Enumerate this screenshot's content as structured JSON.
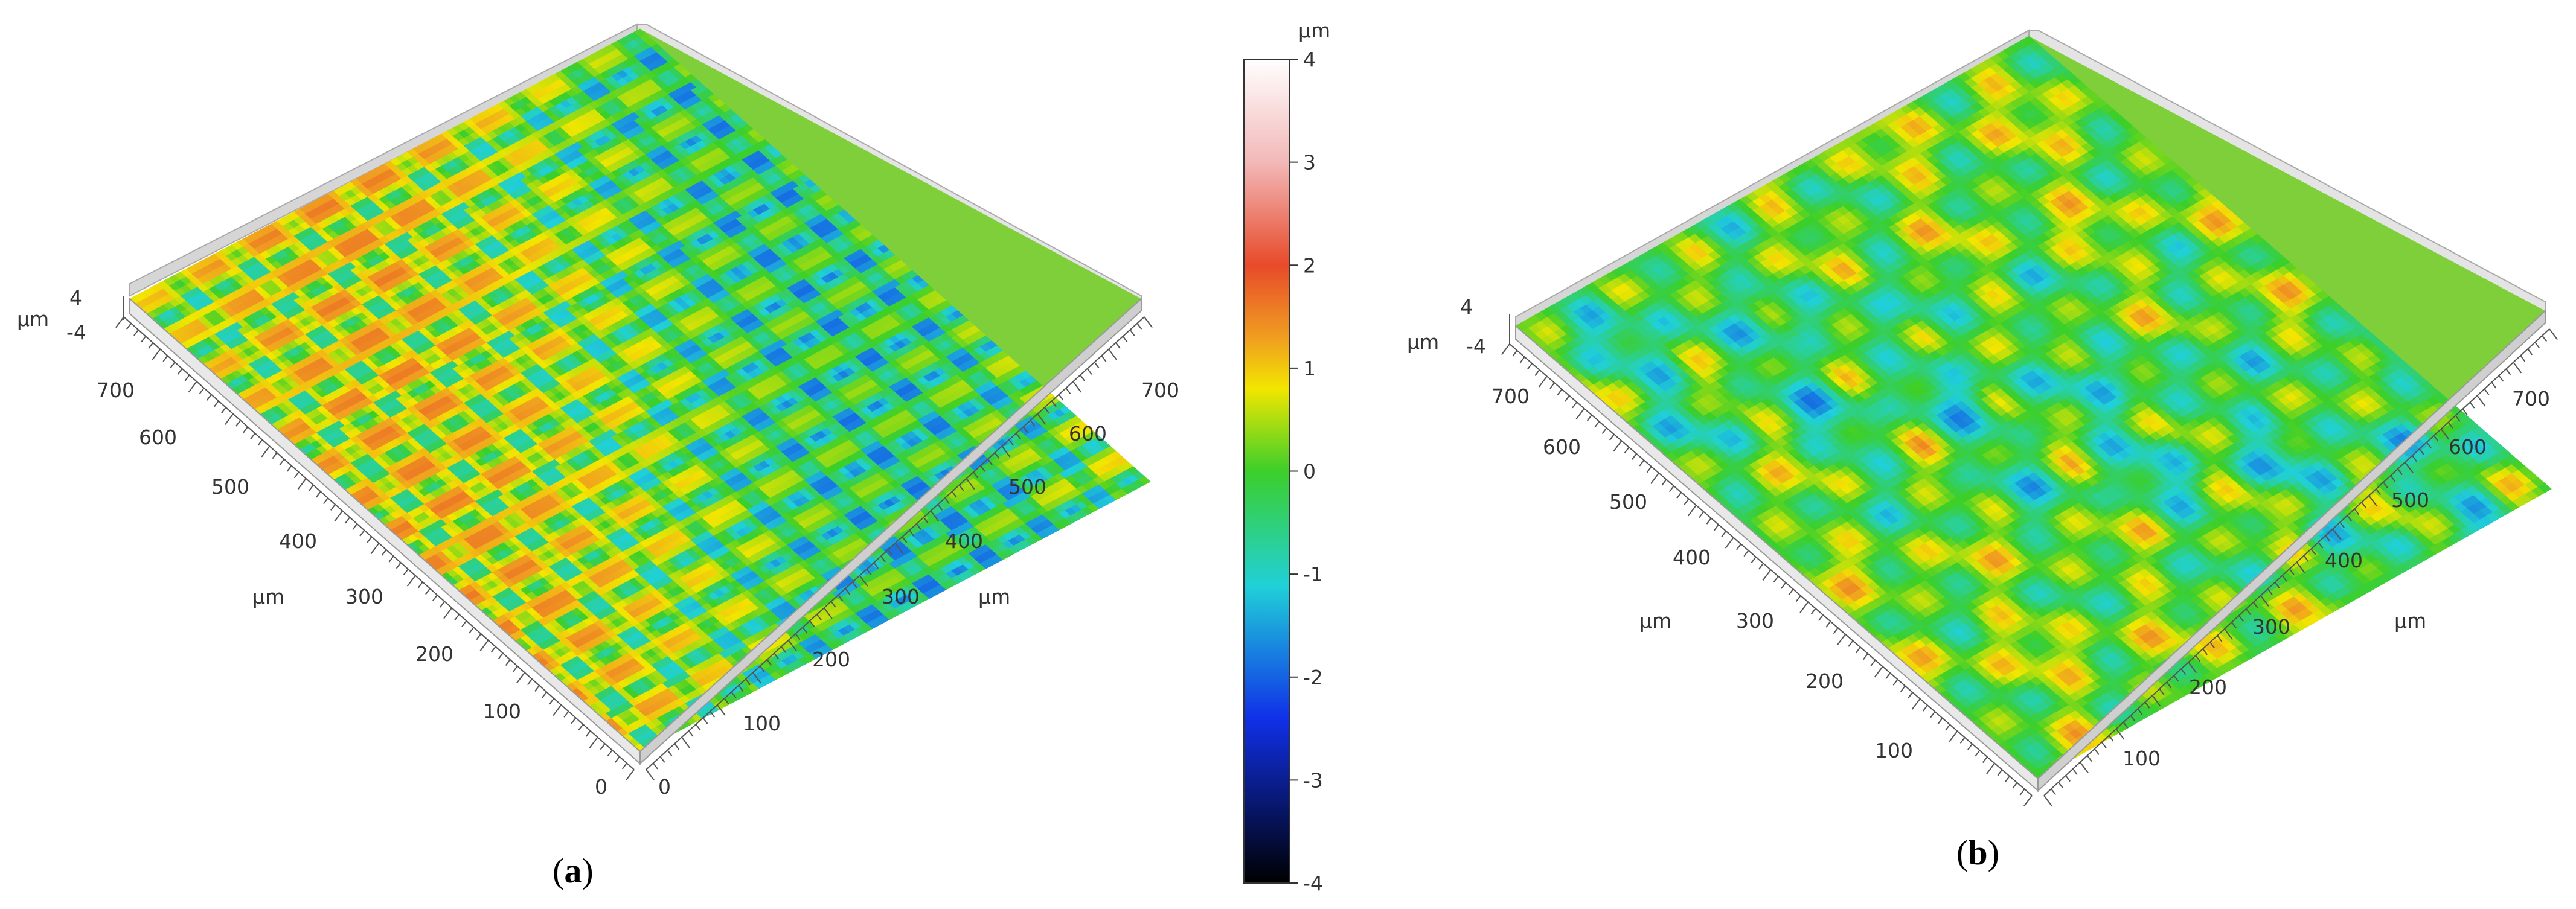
{
  "chart_data": [
    {
      "type": "heatmap",
      "panel_label_open": "(",
      "panel_label_letter": "a",
      "panel_label_close": ")",
      "description_kind": "3D surface topography",
      "x_axis": {
        "label": "µm",
        "ticks": [
          "0",
          "100",
          "200",
          "300",
          "400",
          "500",
          "600",
          "700"
        ],
        "range": [
          0,
          750
        ]
      },
      "y_axis": {
        "label": "µm",
        "ticks": [
          "0",
          "100",
          "200",
          "300",
          "400",
          "500",
          "600",
          "700"
        ],
        "range": [
          0,
          750
        ]
      },
      "z_axis": {
        "label": "µm",
        "ticks": [
          "4",
          "-4"
        ],
        "range": [
          -4,
          4
        ]
      },
      "surface_pattern": "periodic parallel ridges with dimples",
      "ridge_count": 14
    },
    {
      "type": "heatmap",
      "panel_label_open": "(",
      "panel_label_letter": "b",
      "panel_label_close": ")",
      "description_kind": "3D surface topography",
      "x_axis": {
        "label": "µm",
        "ticks": [
          "100",
          "200",
          "300",
          "400",
          "500",
          "600",
          "700"
        ],
        "range": [
          0,
          750
        ]
      },
      "y_axis": {
        "label": "µm",
        "ticks": [
          "100",
          "200",
          "300",
          "400",
          "500",
          "600",
          "700"
        ],
        "range": [
          0,
          750
        ]
      },
      "z_axis": {
        "label": "µm",
        "ticks": [
          "4",
          "-4"
        ],
        "range": [
          -4,
          4
        ]
      },
      "surface_pattern": "cross-hatched irregular texture"
    },
    {
      "type": "colorbar",
      "unit": "µm",
      "range": [
        -4,
        4
      ],
      "ticks": [
        "4",
        "3",
        "2",
        "1",
        "0",
        "-1",
        "-2",
        "-3",
        "-4"
      ],
      "colors": [
        "#ffffff",
        "#f2b8b8",
        "#e84a2a",
        "#f0a020",
        "#f2e600",
        "#3ccf2a",
        "#20d0d8",
        "#1030e8",
        "#000000"
      ]
    }
  ]
}
